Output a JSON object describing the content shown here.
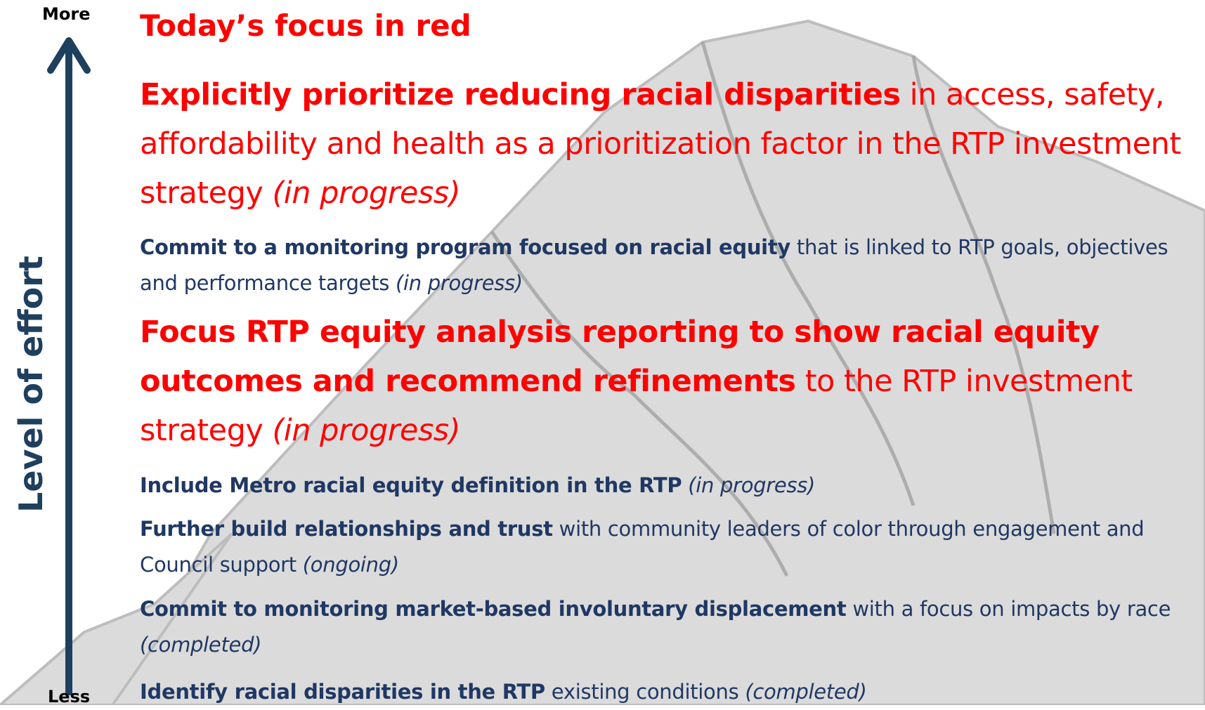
{
  "axis": {
    "top": "More",
    "bottom": "Less",
    "label": "Level of effort"
  },
  "title": "Today’s focus in red",
  "items": [
    {
      "bold": "Explicitly prioritize reducing racial disparities",
      "text": "in access, safety, affordability and health as a prioritization factor in the RTP investment strategy",
      "status": "(in progress)",
      "color": "#ff0000"
    },
    {
      "bold": "Commit to a monitoring program focused on racial equity",
      "text": "that is linked to RTP goals, objectives and performance targets",
      "status": "(in progress)",
      "color": "#1f3864"
    },
    {
      "bold": "Focus RTP equity analysis reporting to show racial equity outcomes and recommend refinements",
      "text": "to the RTP investment strategy",
      "status": "(in progress)",
      "color": "#ff0000"
    },
    {
      "bold": "Include Metro racial equity definition in the RTP",
      "status": "(in progress)",
      "color": "#1f3864"
    },
    {
      "bold": "Further build relationships and trust",
      "text": "with community leaders of color through engagement and Council support",
      "status": "(ongoing)",
      "color": "#1f3864"
    },
    {
      "bold": "Commit to monitoring market-based involuntary displacement",
      "text": "with a focus on impacts by race",
      "status": "(completed)",
      "color": "#1f3864"
    },
    {
      "bold": "Identify racial disparities in the RTP",
      "text": "existing conditions",
      "status": "(completed)",
      "color": "#1f3864"
    }
  ]
}
